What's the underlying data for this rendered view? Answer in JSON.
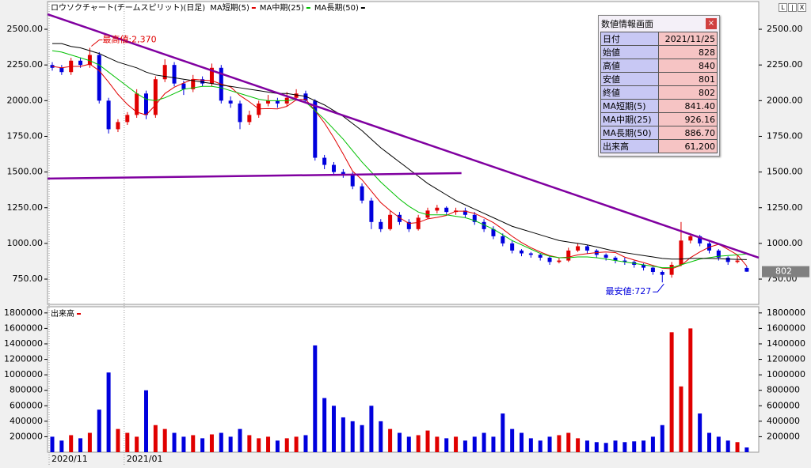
{
  "chart_data": {
    "type": "candlestick",
    "title": "ロウソクチャート(チームスピリット)(日足)",
    "categories": [
      "2020/11",
      null,
      null,
      null,
      null,
      null,
      null,
      null,
      "2021/01",
      null,
      null,
      null,
      null,
      null,
      null,
      null,
      null,
      null,
      null,
      null,
      null,
      null,
      null,
      null,
      null,
      null,
      null,
      null,
      null,
      null,
      null,
      null,
      null,
      null,
      null,
      null,
      null,
      null,
      null,
      null,
      null,
      null,
      null,
      null,
      null,
      null,
      null,
      null,
      null,
      null,
      null,
      null,
      null,
      null,
      null,
      null,
      null,
      null,
      null,
      null,
      null,
      null,
      null,
      null,
      null,
      null,
      null,
      null,
      null,
      null,
      null,
      null,
      null,
      null,
      null
    ],
    "ohlc": {
      "open": [
        2250,
        2230,
        2200,
        2280,
        2250,
        2320,
        2000,
        1800,
        1850,
        1900,
        2050,
        1900,
        2150,
        2250,
        2120,
        2080,
        2150,
        2120,
        2230,
        2000,
        1980,
        1850,
        1900,
        1980,
        2000,
        1980,
        2020,
        2050,
        2000,
        1600,
        1550,
        1500,
        1480,
        1400,
        1300,
        1150,
        1100,
        1200,
        1150,
        1100,
        1180,
        1230,
        1250,
        1220,
        1230,
        1200,
        1150,
        1100,
        1050,
        1000,
        950,
        930,
        920,
        900,
        870,
        880,
        950,
        980,
        950,
        920,
        900,
        880,
        870,
        850,
        830,
        800,
        780,
        850,
        1020,
        1050,
        1000,
        950,
        900,
        870,
        828
      ],
      "high": [
        2270,
        2250,
        2300,
        2300,
        2370,
        2340,
        2020,
        1870,
        1920,
        2080,
        2070,
        2170,
        2290,
        2270,
        2140,
        2180,
        2170,
        2260,
        2250,
        2030,
        2000,
        1930,
        2000,
        2040,
        2020,
        2060,
        2080,
        2070,
        2010,
        1620,
        1570,
        1520,
        1500,
        1420,
        1320,
        1170,
        1230,
        1220,
        1170,
        1200,
        1250,
        1270,
        1260,
        1250,
        1250,
        1220,
        1170,
        1120,
        1070,
        1020,
        960,
        940,
        930,
        910,
        900,
        970,
        1000,
        990,
        960,
        930,
        910,
        900,
        880,
        860,
        840,
        810,
        870,
        1150,
        1070,
        1060,
        1010,
        960,
        910,
        920,
        840
      ],
      "low": [
        2210,
        2180,
        2180,
        2230,
        2230,
        1980,
        1770,
        1780,
        1830,
        1880,
        1870,
        1880,
        2130,
        2100,
        2040,
        2060,
        2100,
        2100,
        1980,
        1950,
        1800,
        1830,
        1880,
        1960,
        1950,
        1960,
        2000,
        1980,
        1580,
        1520,
        1480,
        1460,
        1380,
        1280,
        1100,
        1080,
        1090,
        1130,
        1080,
        1090,
        1170,
        1210,
        1200,
        1200,
        1180,
        1130,
        1080,
        1030,
        980,
        930,
        910,
        900,
        880,
        850,
        860,
        870,
        940,
        930,
        900,
        880,
        860,
        850,
        830,
        810,
        780,
        727,
        760,
        840,
        1000,
        980,
        930,
        880,
        850,
        860,
        801
      ],
      "close": [
        2230,
        2200,
        2280,
        2250,
        2320,
        2000,
        1800,
        1850,
        1900,
        2050,
        1900,
        2150,
        2250,
        2120,
        2080,
        2150,
        2120,
        2230,
        2000,
        1980,
        1850,
        1900,
        1980,
        2000,
        1980,
        2020,
        2050,
        2000,
        1600,
        1550,
        1500,
        1480,
        1400,
        1300,
        1150,
        1100,
        1200,
        1150,
        1100,
        1180,
        1230,
        1250,
        1220,
        1230,
        1200,
        1150,
        1100,
        1050,
        1000,
        950,
        930,
        920,
        900,
        870,
        880,
        950,
        980,
        950,
        920,
        900,
        880,
        870,
        850,
        830,
        800,
        780,
        850,
        1020,
        1050,
        1000,
        950,
        900,
        870,
        880,
        802
      ]
    },
    "up_color": "#e00000",
    "down_color": "#0000dd",
    "series": [
      {
        "name": "MA短期(5)",
        "color": "#e00000",
        "values": [
          2240,
          2230,
          2240,
          2240,
          2256,
          2210,
          2130,
          2044,
          1974,
          1920,
          1900,
          1970,
          2050,
          2094,
          2124,
          2150,
          2144,
          2140,
          2116,
          2096,
          2036,
          1992,
          1942,
          1944,
          1942,
          1960,
          2006,
          2010,
          1930,
          1844,
          1740,
          1626,
          1506,
          1446,
          1366,
          1286,
          1230,
          1180,
          1140,
          1146,
          1172,
          1182,
          1196,
          1226,
          1226,
          1210,
          1180,
          1146,
          1100,
          1050,
          1006,
          970,
          940,
          914,
          900,
          904,
          920,
          928,
          936,
          940,
          936,
          904,
          884,
          866,
          846,
          826,
          822,
          846,
          900,
          940,
          974,
          994,
          958,
          920,
          841.4
        ]
      },
      {
        "name": "MA中期(25)",
        "color": "#00c000",
        "values": [
          2350,
          2340,
          2320,
          2300,
          2280,
          2250,
          2200,
          2150,
          2100,
          2050,
          2010,
          2000,
          2020,
          2050,
          2080,
          2090,
          2100,
          2100,
          2090,
          2070,
          2050,
          2030,
          2010,
          2000,
          2000,
          2000,
          2010,
          1990,
          1930,
          1870,
          1800,
          1730,
          1650,
          1570,
          1500,
          1430,
          1370,
          1310,
          1260,
          1220,
          1200,
          1200,
          1200,
          1190,
          1180,
          1160,
          1130,
          1100,
          1060,
          1020,
          990,
          960,
          930,
          910,
          900,
          900,
          905,
          905,
          900,
          890,
          880,
          870,
          860,
          850,
          840,
          830,
          830,
          850,
          870,
          890,
          900,
          910,
          915,
          920,
          926.16
        ]
      },
      {
        "name": "MA長期(50)",
        "color": "#000000",
        "values": [
          2400,
          2400,
          2380,
          2370,
          2350,
          2330,
          2300,
          2270,
          2250,
          2230,
          2200,
          2180,
          2170,
          2160,
          2150,
          2140,
          2130,
          2120,
          2110,
          2100,
          2090,
          2080,
          2070,
          2060,
          2050,
          2050,
          2040,
          2030,
          2000,
          1970,
          1930,
          1890,
          1840,
          1790,
          1730,
          1670,
          1620,
          1570,
          1520,
          1470,
          1420,
          1380,
          1340,
          1300,
          1270,
          1240,
          1210,
          1180,
          1150,
          1120,
          1100,
          1080,
          1060,
          1040,
          1020,
          1010,
          1000,
          990,
          975,
          960,
          945,
          935,
          925,
          915,
          905,
          895,
          890,
          890,
          895,
          895,
          895,
          893,
          890,
          888,
          886.7
        ]
      }
    ],
    "ylim": [
      573,
      2694
    ],
    "yticks": [
      {
        "value": 750,
        "label": "750.00"
      },
      {
        "value": 1000,
        "label": "1000.00"
      },
      {
        "value": 1250,
        "label": "1250.00"
      },
      {
        "value": 1500,
        "label": "1500.00"
      },
      {
        "value": 1750,
        "label": "1750.00"
      },
      {
        "value": 2000,
        "label": "2000.00"
      },
      {
        "value": 2250,
        "label": "2250.00"
      },
      {
        "value": 2500,
        "label": "2500.00"
      }
    ],
    "trend_lines": [
      {
        "color": "#8000a0",
        "points": [
          [
            -0.5,
            2605
          ],
          [
            75.3,
            900
          ]
        ]
      },
      {
        "color": "#8000a0",
        "points": [
          [
            -0.5,
            1454
          ],
          [
            43.6,
            1492
          ]
        ]
      }
    ],
    "annotations": [
      {
        "text": "最高値:2,370"
      },
      {
        "text": "最安値:727"
      }
    ],
    "volume": {
      "name": "出来高",
      "color": "#e00000",
      "values": [
        200000,
        150000,
        220000,
        180000,
        250000,
        550000,
        1030000,
        300000,
        250000,
        200000,
        800000,
        350000,
        300000,
        250000,
        200000,
        220000,
        180000,
        230000,
        250000,
        200000,
        300000,
        220000,
        180000,
        200000,
        150000,
        180000,
        200000,
        220000,
        1380000,
        700000,
        600000,
        450000,
        400000,
        350000,
        600000,
        400000,
        300000,
        250000,
        200000,
        220000,
        280000,
        200000,
        180000,
        200000,
        150000,
        200000,
        250000,
        200000,
        500000,
        300000,
        250000,
        180000,
        150000,
        200000,
        220000,
        250000,
        180000,
        150000,
        130000,
        120000,
        150000,
        130000,
        140000,
        150000,
        200000,
        350000,
        1550000,
        850000,
        1600000,
        500000,
        250000,
        200000,
        150000,
        130000,
        61200
      ],
      "ylim": [
        0,
        1880000
      ],
      "yticks": [
        200000,
        400000,
        600000,
        800000,
        1000000,
        1200000,
        1400000,
        1600000,
        1800000
      ]
    }
  },
  "info_panel": {
    "title": "数値情報画面",
    "close": "×",
    "rows": [
      [
        "日付",
        "2021/11/25"
      ],
      [
        "始値",
        "828"
      ],
      [
        "高値",
        "840"
      ],
      [
        "安値",
        "801"
      ],
      [
        "終値",
        "802"
      ],
      [
        "MA短期(5)",
        "841.40"
      ],
      [
        "MA中期(25)",
        "926.16"
      ],
      [
        "MA長期(50)",
        "886.70"
      ],
      [
        "出来高",
        "61,200"
      ]
    ]
  },
  "window_buttons": [
    "L",
    "|",
    "X"
  ]
}
